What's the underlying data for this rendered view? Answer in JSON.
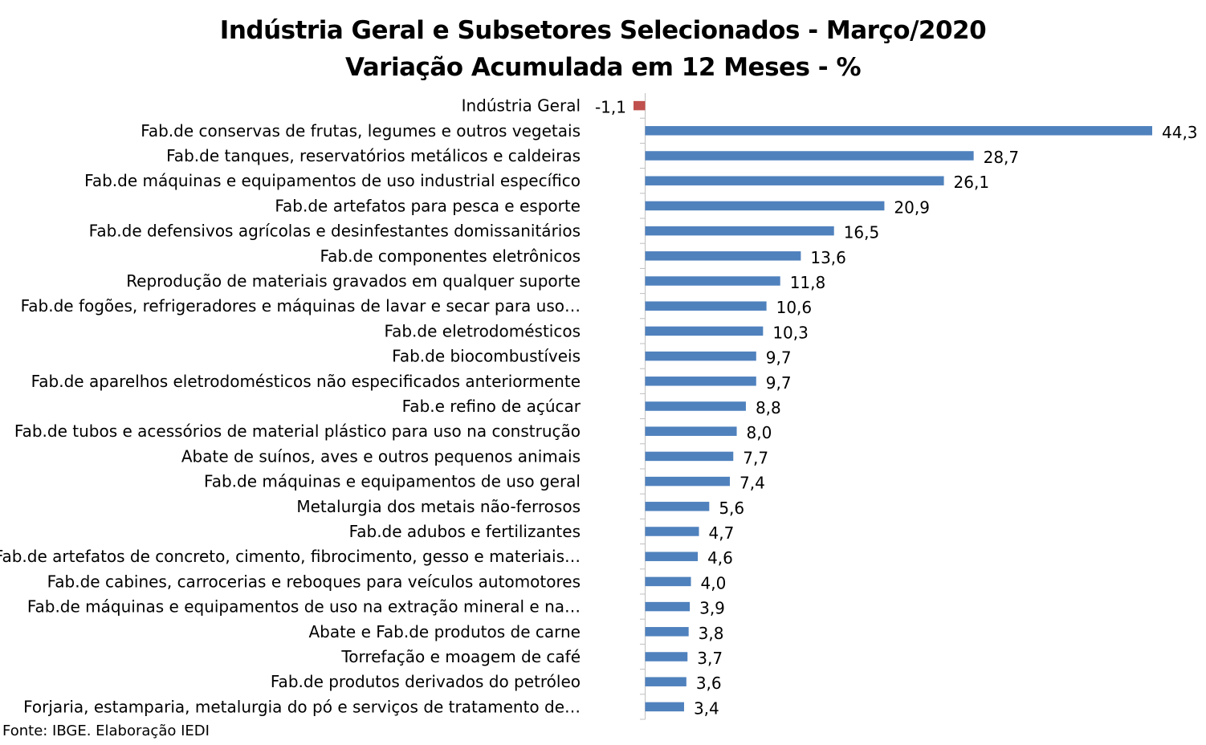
{
  "chart_data": {
    "type": "bar",
    "orientation": "horizontal",
    "title": "Indústria Geral e Subsetores Selecionados - Março/2020",
    "subtitle": "Variação Acumulada em 12 Meses - %",
    "source": "Fonte: IBGE. Elaboração IEDI",
    "colors": {
      "positive": "#4F81BD",
      "negative": "#C0504D",
      "grid": "#BFBFBF"
    },
    "xlim": [
      -1.1,
      44.3
    ],
    "grid": false,
    "legend": "none",
    "categories": [
      "Indústria Geral",
      "Fab.de conservas de frutas, legumes e outros vegetais",
      "Fab.de tanques, reservatórios metálicos e caldeiras",
      "Fab.de máquinas e equipamentos de uso industrial específico",
      "Fab.de artefatos para pesca e esporte",
      "Fab.de defensivos agrícolas e desinfestantes domissanitários",
      "Fab.de componentes eletrônicos",
      "Reprodução de materiais gravados em qualquer suporte",
      "Fab.de fogões, refrigeradores e máquinas de lavar e secar para uso…",
      "Fab.de eletrodomésticos",
      "Fab.de biocombustíveis",
      "Fab.de aparelhos eletrodomésticos não especificados anteriormente",
      "Fab.e refino de açúcar",
      "Fab.de tubos e acessórios de material plástico para uso na construção",
      "Abate de suínos, aves e outros pequenos animais",
      "Fab.de máquinas e equipamentos de uso geral",
      "Metalurgia dos metais não-ferrosos",
      "Fab.de adubos e fertilizantes",
      "Fab.de artefatos de concreto, cimento, fibrocimento, gesso e materiais…",
      "Fab.de cabines, carrocerias e reboques para veículos automotores",
      "Fab.de máquinas e equipamentos de uso na extração mineral e na…",
      "Abate e Fab.de produtos de carne",
      "Torrefação e moagem de café",
      "Fab.de produtos derivados do petróleo",
      "Forjaria, estamparia, metalurgia do pó e serviços de tratamento de…"
    ],
    "values": [
      -1.1,
      44.3,
      28.7,
      26.1,
      20.9,
      16.5,
      13.6,
      11.8,
      10.6,
      10.3,
      9.7,
      9.7,
      8.8,
      8.0,
      7.7,
      7.4,
      5.6,
      4.7,
      4.6,
      4.0,
      3.9,
      3.8,
      3.7,
      3.6,
      3.4
    ],
    "value_labels": [
      "-1,1",
      "44,3",
      "28,7",
      "26,1",
      "20,9",
      "16,5",
      "13,6",
      "11,8",
      "10,6",
      "10,3",
      "9,7",
      "9,7",
      "8,8",
      "8,0",
      "7,7",
      "7,4",
      "5,6",
      "4,7",
      "4,6",
      "4,0",
      "3,9",
      "3,8",
      "3,7",
      "3,6",
      "3,4"
    ]
  }
}
